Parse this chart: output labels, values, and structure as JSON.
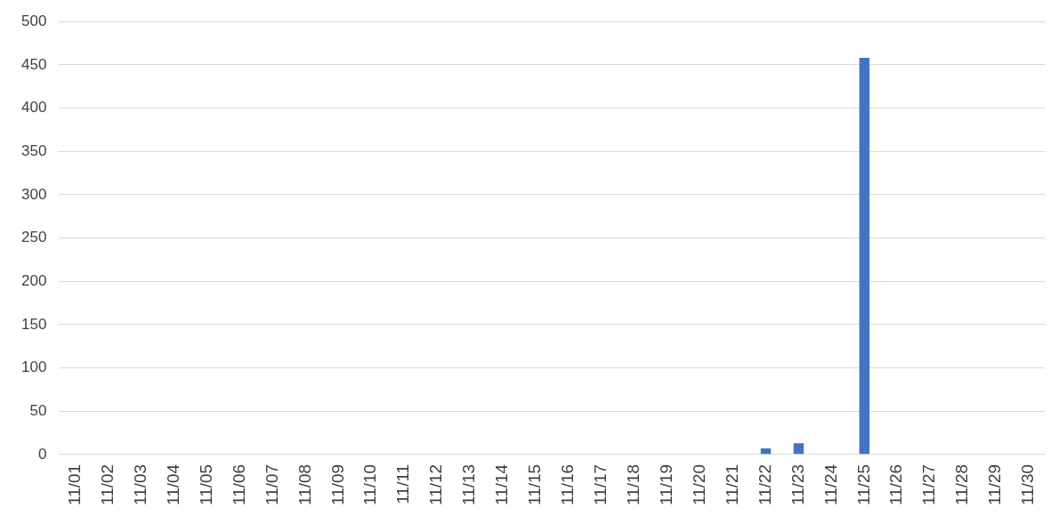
{
  "chart_data": {
    "type": "bar",
    "categories": [
      "11/01",
      "11/02",
      "11/03",
      "11/04",
      "11/05",
      "11/06",
      "11/07",
      "11/08",
      "11/09",
      "11/10",
      "11/11",
      "11/12",
      "11/13",
      "11/14",
      "11/15",
      "11/16",
      "11/17",
      "11/18",
      "11/19",
      "11/20",
      "11/21",
      "11/22",
      "11/23",
      "11/24",
      "11/25",
      "11/26",
      "11/27",
      "11/28",
      "11/29",
      "11/30"
    ],
    "values": [
      0,
      0,
      0,
      0,
      0,
      0,
      0,
      0,
      0,
      0,
      0,
      0,
      0,
      0,
      0,
      0,
      0,
      0,
      0,
      0,
      0,
      7,
      13,
      0,
      458,
      0,
      0,
      0,
      0,
      0
    ],
    "color": "#4472c4",
    "ylim": [
      0,
      500
    ],
    "yticks": [
      0,
      50,
      100,
      150,
      200,
      250,
      300,
      350,
      400,
      450,
      500
    ],
    "grid": "y"
  }
}
